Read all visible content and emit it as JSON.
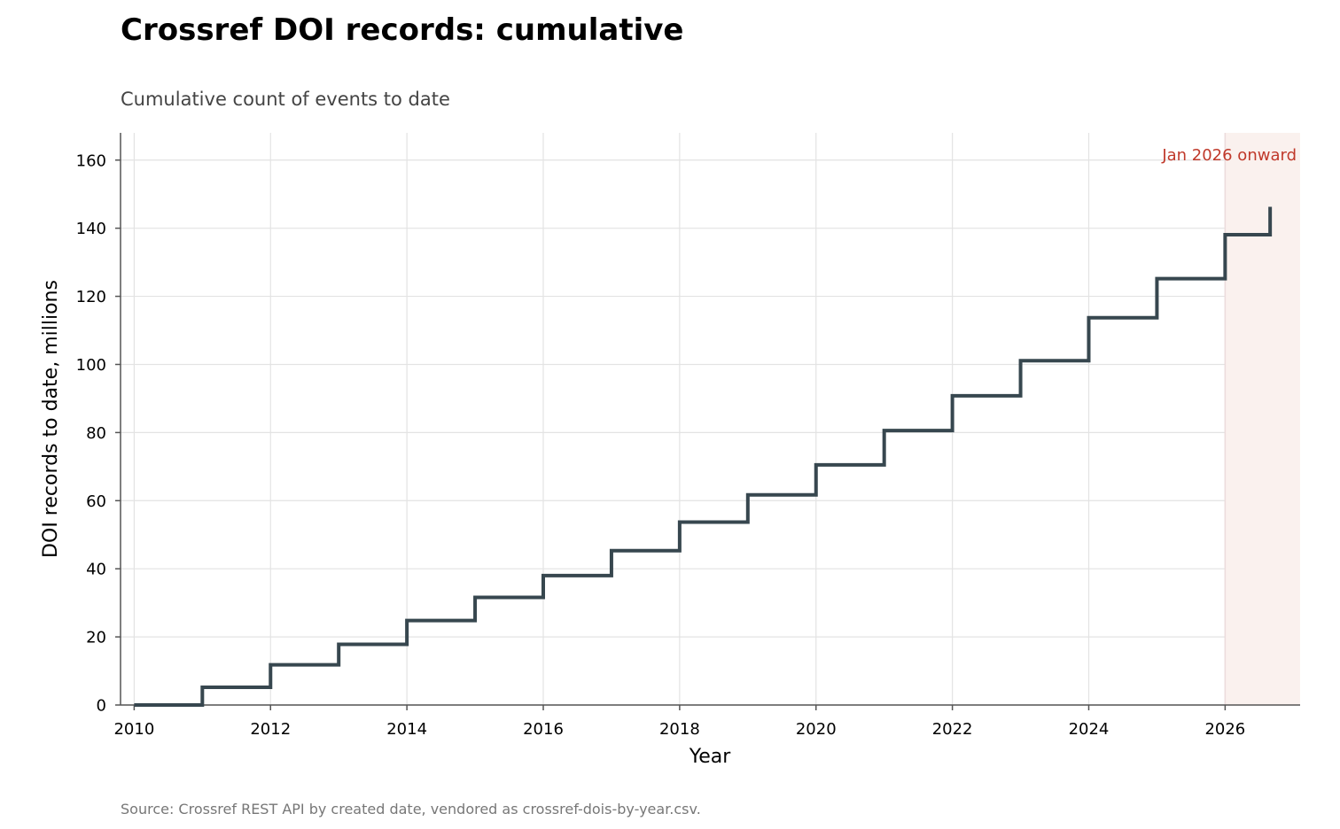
{
  "colors": {
    "line": "#37474f",
    "grid": "#e3e3e3",
    "axis": "#555555",
    "shade": "#faf1ee",
    "shade_edge": "#ecdcdc",
    "annotation": "#c0392b"
  },
  "chart_data": {
    "type": "line",
    "step": "post",
    "title": "Crossref DOI records: cumulative",
    "subtitle": "Cumulative count of events to date",
    "xlabel": "Year",
    "ylabel": "DOI records to date, millions",
    "source": "Source: Crossref REST API by created date, vendored as crossref-dois-by-year.csv.",
    "xlim": [
      2009.8,
      2027.1
    ],
    "ylim": [
      0,
      168
    ],
    "xticks": [
      2010,
      2012,
      2014,
      2016,
      2018,
      2020,
      2022,
      2024,
      2026
    ],
    "yticks": [
      0,
      20,
      40,
      60,
      80,
      100,
      120,
      140,
      160
    ],
    "grid": true,
    "series": [
      {
        "x": [
          2010,
          2011,
          2012,
          2013,
          2014,
          2015,
          2016,
          2017,
          2018,
          2019,
          2020,
          2021,
          2022,
          2023,
          2024,
          2025,
          2026,
          2026.66
        ],
        "y": [
          0,
          5.2,
          11.8,
          17.8,
          24.8,
          31.6,
          38.0,
          45.3,
          53.7,
          61.7,
          70.5,
          80.6,
          90.8,
          101.1,
          113.7,
          125.2,
          138.1,
          146.3
        ]
      }
    ],
    "shaded_region": {
      "x_start": 2026,
      "label": "Jan 2026 onward"
    }
  }
}
